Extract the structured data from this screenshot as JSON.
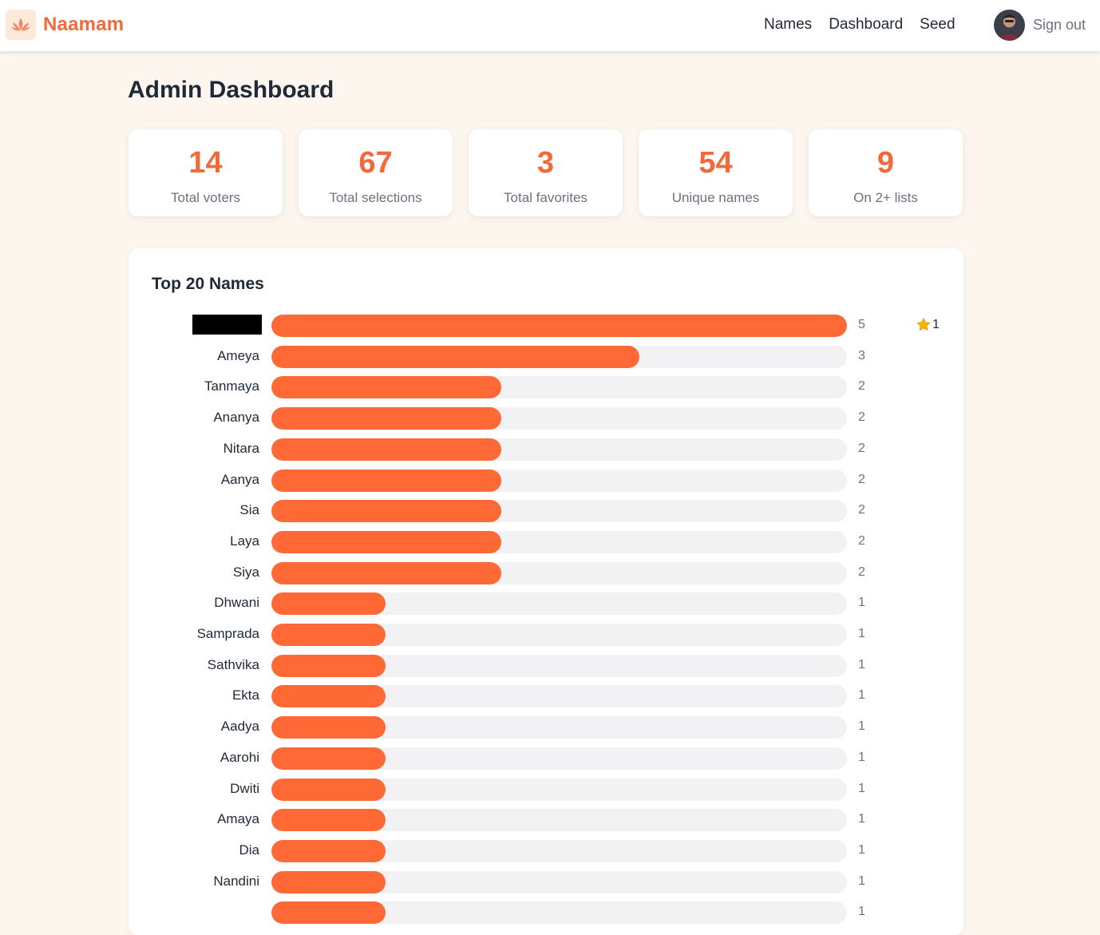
{
  "brand": {
    "name": "Naamam",
    "logo_icon": "lotus-icon"
  },
  "nav": {
    "items": [
      "Names",
      "Dashboard",
      "Seed"
    ],
    "sign_out": "Sign out"
  },
  "page": {
    "title": "Admin Dashboard"
  },
  "stats": [
    {
      "value": "14",
      "label": "Total voters"
    },
    {
      "value": "67",
      "label": "Total selections"
    },
    {
      "value": "3",
      "label": "Total favorites"
    },
    {
      "value": "54",
      "label": "Unique names"
    },
    {
      "value": "9",
      "label": "On 2+ lists"
    }
  ],
  "colors": {
    "accent": "#f26a3a",
    "bar": "#ff6936",
    "track": "#f2f2f4",
    "background": "#fcf6ef"
  },
  "top_names": {
    "title": "Top 20 Names",
    "max": 5,
    "rows": [
      {
        "name": "",
        "redacted": true,
        "count": 5,
        "favorites": 1
      },
      {
        "name": "Ameya",
        "count": 3
      },
      {
        "name": "Tanmaya",
        "count": 2
      },
      {
        "name": "Ananya",
        "count": 2
      },
      {
        "name": "Nitara",
        "count": 2
      },
      {
        "name": "Aanya",
        "count": 2
      },
      {
        "name": "Sia",
        "count": 2
      },
      {
        "name": "Laya",
        "count": 2
      },
      {
        "name": "Siya",
        "count": 2
      },
      {
        "name": "Dhwani",
        "count": 1
      },
      {
        "name": "Samprada",
        "count": 1
      },
      {
        "name": "Sathvika",
        "count": 1
      },
      {
        "name": "Ekta",
        "count": 1
      },
      {
        "name": "Aadya",
        "count": 1
      },
      {
        "name": "Aarohi",
        "count": 1
      },
      {
        "name": "Dwiti",
        "count": 1
      },
      {
        "name": "Amaya",
        "count": 1
      },
      {
        "name": "Dia",
        "count": 1
      },
      {
        "name": "Nandini",
        "count": 1
      },
      {
        "name": "",
        "count": 1
      }
    ]
  }
}
